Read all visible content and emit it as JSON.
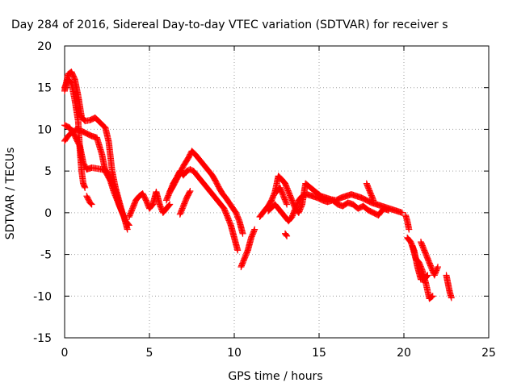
{
  "chart_data": {
    "type": "scatter",
    "title": "Day 284 of 2016, Sidereal Day-to-day VTEC variation (SDTVAR) for receiver s",
    "xlabel": "GPS time / hours",
    "ylabel": "SDTVAR / TECUs",
    "xlim": [
      0,
      25
    ],
    "ylim": [
      -15,
      20
    ],
    "xticks": [
      0,
      5,
      10,
      15,
      20,
      25
    ],
    "yticks": [
      -15,
      -10,
      -5,
      0,
      5,
      10,
      15,
      20
    ],
    "grid": true,
    "marker": "+",
    "series": [
      {
        "name": "SDTVAR",
        "color": "#ff0000",
        "tracks": [
          [
            [
              0.0,
              14.6
            ],
            [
              0.2,
              16.6
            ],
            [
              0.4,
              16.9
            ],
            [
              0.6,
              16.0
            ],
            [
              0.8,
              14.0
            ],
            [
              1.0,
              11.5
            ],
            [
              1.2,
              11.0
            ],
            [
              1.5,
              11.1
            ],
            [
              1.8,
              11.4
            ],
            [
              2.1,
              10.8
            ],
            [
              2.4,
              10.2
            ],
            [
              2.6,
              8.5
            ],
            [
              2.8,
              5.0
            ],
            [
              3.0,
              3.0
            ],
            [
              3.2,
              1.5
            ],
            [
              3.4,
              0.0
            ],
            [
              3.6,
              -1.0
            ],
            [
              3.8,
              -1.5
            ]
          ],
          [
            [
              0.0,
              15.0
            ],
            [
              0.2,
              16.0
            ],
            [
              0.4,
              15.6
            ],
            [
              0.6,
              13.5
            ],
            [
              0.8,
              11.0
            ],
            [
              0.9,
              7.5
            ],
            [
              1.0,
              5.0
            ],
            [
              1.1,
              3.5
            ],
            [
              1.2,
              3.0
            ]
          ],
          [
            [
              0.0,
              8.6
            ],
            [
              0.2,
              9.2
            ],
            [
              0.4,
              9.6
            ],
            [
              0.7,
              10.0
            ],
            [
              1.0,
              9.8
            ],
            [
              1.3,
              9.5
            ],
            [
              1.6,
              9.2
            ],
            [
              1.9,
              9.0
            ],
            [
              2.2,
              7.0
            ],
            [
              2.4,
              5.0
            ],
            [
              2.6,
              4.2
            ],
            [
              2.8,
              3.6
            ],
            [
              3.0,
              2.5
            ],
            [
              3.2,
              1.0
            ],
            [
              3.4,
              0.0
            ]
          ],
          [
            [
              0.0,
              10.5
            ],
            [
              0.3,
              10.2
            ],
            [
              0.6,
              9.2
            ],
            [
              0.9,
              8.0
            ],
            [
              1.1,
              6.0
            ],
            [
              1.3,
              5.2
            ],
            [
              1.6,
              5.4
            ],
            [
              1.9,
              5.3
            ],
            [
              2.2,
              5.2
            ],
            [
              2.5,
              5.0
            ],
            [
              2.7,
              3.8
            ],
            [
              2.9,
              2.5
            ],
            [
              3.1,
              1.5
            ],
            [
              3.3,
              0.5
            ],
            [
              3.5,
              -0.5
            ],
            [
              3.7,
              -2.0
            ]
          ],
          [
            [
              1.3,
              2.0
            ],
            [
              1.5,
              1.2
            ],
            [
              1.6,
              1.0
            ]
          ],
          [
            [
              3.8,
              -0.5
            ],
            [
              4.0,
              0.5
            ],
            [
              4.2,
              1.5
            ],
            [
              4.4,
              2.0
            ],
            [
              4.6,
              2.3
            ],
            [
              4.8,
              1.5
            ],
            [
              5.0,
              0.5
            ],
            [
              5.2,
              1.0
            ],
            [
              5.4,
              2.5
            ],
            [
              5.6,
              1.0
            ],
            [
              5.8,
              0.0
            ],
            [
              6.0,
              0.5
            ],
            [
              6.2,
              1.0
            ]
          ],
          [
            [
              6.0,
              1.5
            ],
            [
              6.2,
              2.5
            ],
            [
              6.4,
              3.5
            ],
            [
              6.6,
              4.2
            ],
            [
              6.8,
              5.0
            ],
            [
              7.0,
              4.5
            ],
            [
              7.2,
              5.0
            ],
            [
              7.4,
              5.2
            ],
            [
              7.6,
              5.0
            ],
            [
              7.8,
              4.5
            ],
            [
              8.0,
              4.0
            ],
            [
              8.2,
              3.5
            ],
            [
              8.4,
              3.0
            ],
            [
              8.6,
              2.5
            ],
            [
              8.8,
              2.0
            ],
            [
              9.0,
              1.5
            ],
            [
              9.2,
              1.0
            ],
            [
              9.4,
              0.5
            ],
            [
              9.6,
              -0.5
            ],
            [
              9.8,
              -1.5
            ],
            [
              10.0,
              -3.0
            ],
            [
              10.2,
              -4.5
            ]
          ],
          [
            [
              6.2,
              2.5
            ],
            [
              6.4,
              3.2
            ],
            [
              6.6,
              4.0
            ],
            [
              6.8,
              4.8
            ],
            [
              7.0,
              5.6
            ],
            [
              7.3,
              6.6
            ],
            [
              7.5,
              7.4
            ],
            [
              7.7,
              7.0
            ],
            [
              7.9,
              6.5
            ],
            [
              8.1,
              6.0
            ],
            [
              8.3,
              5.5
            ],
            [
              8.5,
              5.0
            ],
            [
              8.7,
              4.5
            ],
            [
              8.9,
              3.8
            ],
            [
              9.1,
              3.0
            ],
            [
              9.3,
              2.3
            ],
            [
              9.5,
              1.8
            ],
            [
              9.7,
              1.2
            ],
            [
              9.9,
              0.6
            ],
            [
              10.1,
              0.0
            ],
            [
              10.3,
              -1.0
            ],
            [
              10.5,
              -2.5
            ]
          ],
          [
            [
              6.8,
              -0.2
            ],
            [
              7.0,
              0.8
            ],
            [
              7.2,
              1.8
            ],
            [
              7.4,
              2.6
            ]
          ],
          [
            [
              10.4,
              -6.5
            ],
            [
              10.6,
              -5.5
            ],
            [
              10.8,
              -4.5
            ],
            [
              11.0,
              -3.0
            ],
            [
              11.2,
              -2.0
            ]
          ],
          [
            [
              11.5,
              -0.5
            ],
            [
              11.8,
              0.3
            ],
            [
              12.0,
              0.8
            ],
            [
              12.2,
              1.5
            ],
            [
              12.4,
              2.5
            ],
            [
              12.6,
              4.4
            ],
            [
              12.8,
              4.0
            ],
            [
              13.0,
              3.5
            ],
            [
              13.2,
              2.5
            ],
            [
              13.4,
              1.5
            ],
            [
              13.6,
              0.5
            ],
            [
              13.8,
              0.0
            ],
            [
              14.0,
              1.0
            ],
            [
              14.2,
              3.5
            ],
            [
              14.5,
              3.0
            ],
            [
              14.8,
              2.5
            ],
            [
              15.1,
              2.0
            ],
            [
              15.4,
              1.8
            ],
            [
              15.7,
              1.6
            ],
            [
              16.0,
              1.5
            ],
            [
              16.3,
              1.8
            ],
            [
              16.6,
              2.0
            ],
            [
              16.9,
              2.2
            ],
            [
              17.2,
              2.0
            ],
            [
              17.5,
              1.8
            ],
            [
              17.8,
              1.5
            ],
            [
              18.1,
              1.2
            ],
            [
              18.4,
              1.0
            ],
            [
              18.7,
              0.8
            ],
            [
              19.0,
              0.6
            ],
            [
              19.3,
              0.4
            ],
            [
              19.6,
              0.2
            ],
            [
              19.9,
              0.0
            ]
          ],
          [
            [
              12.0,
              0.2
            ],
            [
              12.2,
              0.6
            ],
            [
              12.4,
              1.0
            ],
            [
              12.6,
              0.5
            ],
            [
              12.8,
              0.0
            ],
            [
              13.0,
              -0.5
            ],
            [
              13.2,
              -1.0
            ],
            [
              13.4,
              -0.5
            ],
            [
              13.6,
              0.5
            ],
            [
              13.8,
              1.5
            ],
            [
              14.0,
              2.0
            ],
            [
              14.3,
              2.2
            ],
            [
              14.6,
              2.0
            ],
            [
              14.9,
              1.8
            ],
            [
              15.2,
              1.5
            ],
            [
              15.5,
              1.3
            ],
            [
              15.8,
              1.5
            ],
            [
              16.1,
              1.0
            ],
            [
              16.4,
              0.8
            ],
            [
              16.7,
              1.2
            ],
            [
              17.0,
              1.0
            ],
            [
              17.3,
              0.5
            ],
            [
              17.6,
              0.8
            ],
            [
              17.9,
              0.3
            ],
            [
              18.2,
              0.0
            ],
            [
              18.5,
              -0.3
            ],
            [
              18.8,
              0.5
            ],
            [
              19.1,
              0.3
            ]
          ],
          [
            [
              12.5,
              2.5
            ],
            [
              12.7,
              3.0
            ],
            [
              12.9,
              2.0
            ],
            [
              13.1,
              1.0
            ]
          ],
          [
            [
              13.0,
              -2.5
            ],
            [
              13.1,
              -2.8
            ]
          ],
          [
            [
              17.8,
              3.5
            ],
            [
              18.0,
              2.5
            ],
            [
              18.2,
              1.5
            ]
          ],
          [
            [
              20.1,
              -0.3
            ],
            [
              20.2,
              -1.0
            ],
            [
              20.3,
              -2.0
            ]
          ],
          [
            [
              20.2,
              -3.0
            ],
            [
              20.4,
              -3.5
            ],
            [
              20.6,
              -4.5
            ],
            [
              20.8,
              -6.5
            ],
            [
              21.0,
              -8.0
            ],
            [
              21.2,
              -8.0
            ],
            [
              21.4,
              -7.5
            ]
          ],
          [
            [
              20.5,
              -4.0
            ],
            [
              20.7,
              -5.5
            ],
            [
              20.9,
              -6.0
            ],
            [
              21.1,
              -7.0
            ],
            [
              21.3,
              -8.5
            ],
            [
              21.5,
              -10.3
            ],
            [
              21.7,
              -10.0
            ]
          ],
          [
            [
              21.0,
              -3.5
            ],
            [
              21.2,
              -4.5
            ],
            [
              21.4,
              -5.5
            ],
            [
              21.6,
              -6.5
            ],
            [
              21.8,
              -7.5
            ],
            [
              22.0,
              -6.5
            ]
          ],
          [
            [
              22.5,
              -7.5
            ],
            [
              22.6,
              -8.5
            ],
            [
              22.7,
              -9.5
            ],
            [
              22.8,
              -10.2
            ]
          ]
        ]
      }
    ]
  }
}
